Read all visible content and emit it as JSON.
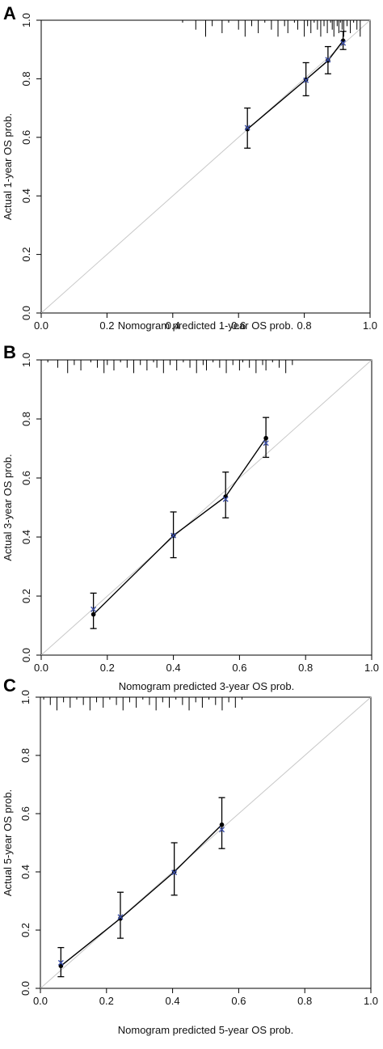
{
  "chart_data": [
    {
      "panel": "A",
      "type": "scatter",
      "xlabel": "Nomogram predicted 1-year OS prob.",
      "ylabel": "Actual 1-year OS prob.",
      "xlim": [
        0.0,
        1.0
      ],
      "ylim": [
        0.0,
        1.0
      ],
      "xticks": [
        "0.0",
        "0.2",
        "0.4",
        "0.6",
        "0.8",
        "1.0"
      ],
      "yticks": [
        "0.0",
        "0.2",
        "0.4",
        "0.6",
        "0.8",
        "1.0"
      ],
      "grid": false,
      "series": [
        {
          "x": [
            0.627,
            0.805,
            0.872,
            0.918
          ],
          "y": [
            0.628,
            0.797,
            0.862,
            0.93
          ],
          "ci_low": [
            0.563,
            0.742,
            0.817,
            0.9
          ],
          "ci_high": [
            0.7,
            0.855,
            0.91,
            0.962
          ],
          "bias_corrected_y": [
            0.633,
            0.795,
            0.865,
            0.922
          ]
        }
      ],
      "rug": [
        0.43,
        0.47,
        0.5,
        0.52,
        0.55,
        0.57,
        0.6,
        0.62,
        0.64,
        0.66,
        0.68,
        0.7,
        0.72,
        0.74,
        0.75,
        0.77,
        0.78,
        0.8,
        0.81,
        0.82,
        0.83,
        0.84,
        0.85,
        0.86,
        0.87,
        0.88,
        0.885,
        0.89,
        0.9,
        0.905,
        0.91,
        0.915,
        0.92,
        0.93,
        0.94,
        0.95,
        0.96,
        0.97
      ]
    },
    {
      "panel": "B",
      "type": "scatter",
      "xlabel": "Nomogram predicted 3-year OS prob.",
      "ylabel": "Actual 3-year OS prob.",
      "xlim": [
        0.0,
        1.0
      ],
      "ylim": [
        0.0,
        1.0
      ],
      "xticks": [
        "0.0",
        "0.2",
        "0.4",
        "0.6",
        "0.8",
        "1.0"
      ],
      "yticks": [
        "0.0",
        "0.2",
        "0.4",
        "0.6",
        "0.8",
        "1.0"
      ],
      "grid": false,
      "series": [
        {
          "x": [
            0.158,
            0.4,
            0.558,
            0.68
          ],
          "y": [
            0.138,
            0.405,
            0.537,
            0.735
          ],
          "ci_low": [
            0.09,
            0.33,
            0.465,
            0.67
          ],
          "ci_high": [
            0.21,
            0.485,
            0.62,
            0.805
          ],
          "bias_corrected_y": [
            0.155,
            0.405,
            0.528,
            0.718
          ]
        }
      ],
      "rug": [
        0.02,
        0.05,
        0.08,
        0.1,
        0.12,
        0.15,
        0.17,
        0.19,
        0.2,
        0.22,
        0.24,
        0.26,
        0.28,
        0.3,
        0.32,
        0.34,
        0.35,
        0.37,
        0.39,
        0.41,
        0.43,
        0.45,
        0.47,
        0.49,
        0.5,
        0.52,
        0.54,
        0.56,
        0.58,
        0.6,
        0.61,
        0.63,
        0.65,
        0.67,
        0.68,
        0.7,
        0.72,
        0.74,
        0.76
      ]
    },
    {
      "panel": "C",
      "type": "scatter",
      "xlabel": "Nomogram predicted 5-year OS prob.",
      "ylabel": "Actual 5-year OS prob.",
      "xlim": [
        0.0,
        1.0
      ],
      "ylim": [
        0.0,
        1.0
      ],
      "xticks": [
        "0.0",
        "0.2",
        "0.4",
        "0.6",
        "0.8",
        "1.0"
      ],
      "yticks": [
        "0.0",
        "0.2",
        "0.4",
        "0.6",
        "0.8",
        "1.0"
      ],
      "grid": false,
      "series": [
        {
          "x": [
            0.062,
            0.242,
            0.405,
            0.549
          ],
          "y": [
            0.077,
            0.24,
            0.4,
            0.562
          ],
          "ci_low": [
            0.04,
            0.172,
            0.32,
            0.48
          ],
          "ci_high": [
            0.14,
            0.33,
            0.5,
            0.655
          ],
          "bias_corrected_y": [
            0.088,
            0.245,
            0.398,
            0.545
          ]
        }
      ],
      "rug": [
        0.01,
        0.03,
        0.05,
        0.07,
        0.09,
        0.11,
        0.13,
        0.15,
        0.17,
        0.19,
        0.21,
        0.23,
        0.25,
        0.27,
        0.29,
        0.31,
        0.33,
        0.35,
        0.37,
        0.39,
        0.41,
        0.43,
        0.45,
        0.47,
        0.49,
        0.51,
        0.53,
        0.55,
        0.57,
        0.59,
        0.61
      ]
    }
  ],
  "colors": {
    "axis": "#000000",
    "ideal_line": "#c8c8c8",
    "observed_line": "#000000",
    "bias_corrected_marker": "#3b4fa8",
    "rug": "#000000"
  }
}
